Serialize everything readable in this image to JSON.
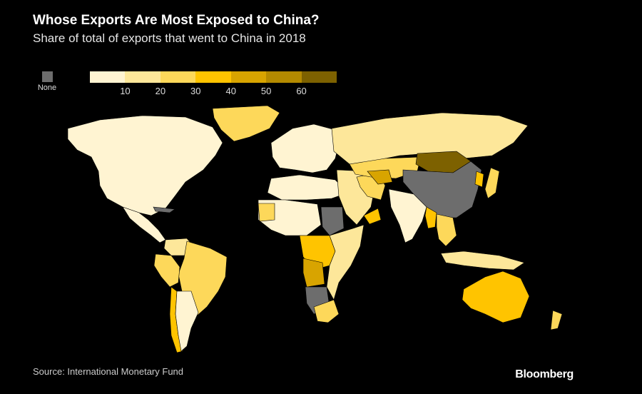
{
  "title": "Whose Exports Are Most Exposed to China?",
  "subtitle": "Share of total of exports that went to China in 2018",
  "legend": {
    "none_label": "None",
    "none_color": "#6d6d6d",
    "colors": [
      "#fff4d2",
      "#fde79a",
      "#fdd85a",
      "#ffc400",
      "#d8a400",
      "#b48a00",
      "#7d6100"
    ],
    "ticks": [
      "10",
      "20",
      "30",
      "40",
      "50",
      "60"
    ]
  },
  "source": "Source: International Monetary Fund",
  "brand": "Bloomberg",
  "map_data": {
    "regions": [
      {
        "name": "greenland",
        "bin": 2
      },
      {
        "name": "north-america",
        "bin": 0
      },
      {
        "name": "central-america",
        "bin": 0
      },
      {
        "name": "cuba",
        "bin": -1
      },
      {
        "name": "venezuela",
        "bin": 1
      },
      {
        "name": "brazil",
        "bin": 2
      },
      {
        "name": "peru",
        "bin": 2
      },
      {
        "name": "chile",
        "bin": 3
      },
      {
        "name": "argentina",
        "bin": 0
      },
      {
        "name": "europe",
        "bin": 0
      },
      {
        "name": "north-africa",
        "bin": 0
      },
      {
        "name": "west-africa",
        "bin": 0
      },
      {
        "name": "mauritania",
        "bin": 2
      },
      {
        "name": "sudan",
        "bin": -1
      },
      {
        "name": "central-africa",
        "bin": 3
      },
      {
        "name": "angola",
        "bin": 4
      },
      {
        "name": "namibia-botswana",
        "bin": -1
      },
      {
        "name": "southern-africa",
        "bin": 2
      },
      {
        "name": "east-africa",
        "bin": 1
      },
      {
        "name": "middle-east",
        "bin": 1
      },
      {
        "name": "iran",
        "bin": 2
      },
      {
        "name": "oman",
        "bin": 3
      },
      {
        "name": "russia",
        "bin": 1
      },
      {
        "name": "kazakhstan",
        "bin": 2
      },
      {
        "name": "turkmenistan",
        "bin": 4
      },
      {
        "name": "mongolia",
        "bin": 6
      },
      {
        "name": "china",
        "bin": -1
      },
      {
        "name": "india",
        "bin": 0
      },
      {
        "name": "myanmar",
        "bin": 3
      },
      {
        "name": "southeast-asia",
        "bin": 2
      },
      {
        "name": "korea",
        "bin": 3
      },
      {
        "name": "japan",
        "bin": 2
      },
      {
        "name": "indonesia",
        "bin": 1
      },
      {
        "name": "australia",
        "bin": 3
      },
      {
        "name": "new-zealand",
        "bin": 2
      }
    ]
  }
}
